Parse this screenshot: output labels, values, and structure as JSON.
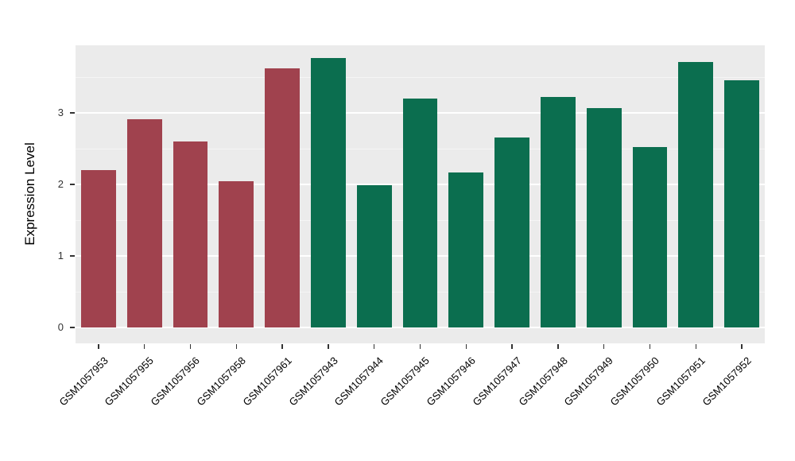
{
  "chart_data": {
    "type": "bar",
    "title": "",
    "xlabel": "",
    "ylabel": "Expression Level",
    "ylim": [
      0,
      3.94
    ],
    "yticks": [
      0,
      1,
      2,
      3
    ],
    "minor_ticks": [
      0.5,
      1.5,
      2.5,
      3.5
    ],
    "grid": true,
    "legend_position": "none",
    "panel_background": "#EBEBEB",
    "major_grid_color": "#FFFFFF",
    "minor_grid_color": "#F5F5F5",
    "categories": [
      "GSM1057953",
      "GSM1057955",
      "GSM1057956",
      "GSM1057958",
      "GSM1057961",
      "GSM1057943",
      "GSM1057944",
      "GSM1057945",
      "GSM1057946",
      "GSM1057947",
      "GSM1057948",
      "GSM1057949",
      "GSM1057950",
      "GSM1057951",
      "GSM1057952"
    ],
    "values": [
      2.2,
      2.91,
      2.6,
      2.05,
      3.62,
      3.77,
      1.99,
      3.2,
      2.17,
      2.66,
      3.22,
      3.07,
      2.52,
      3.71,
      3.46
    ],
    "bar_colors": [
      "#A0424E",
      "#A0424E",
      "#A0424E",
      "#A0424E",
      "#A0424E",
      "#0B6E4F",
      "#0B6E4F",
      "#0B6E4F",
      "#0B6E4F",
      "#0B6E4F",
      "#0B6E4F",
      "#0B6E4F",
      "#0B6E4F",
      "#0B6E4F",
      "#0B6E4F"
    ],
    "group_colors": {
      "group1": "#A0424E",
      "group2": "#0B6E4F"
    }
  }
}
